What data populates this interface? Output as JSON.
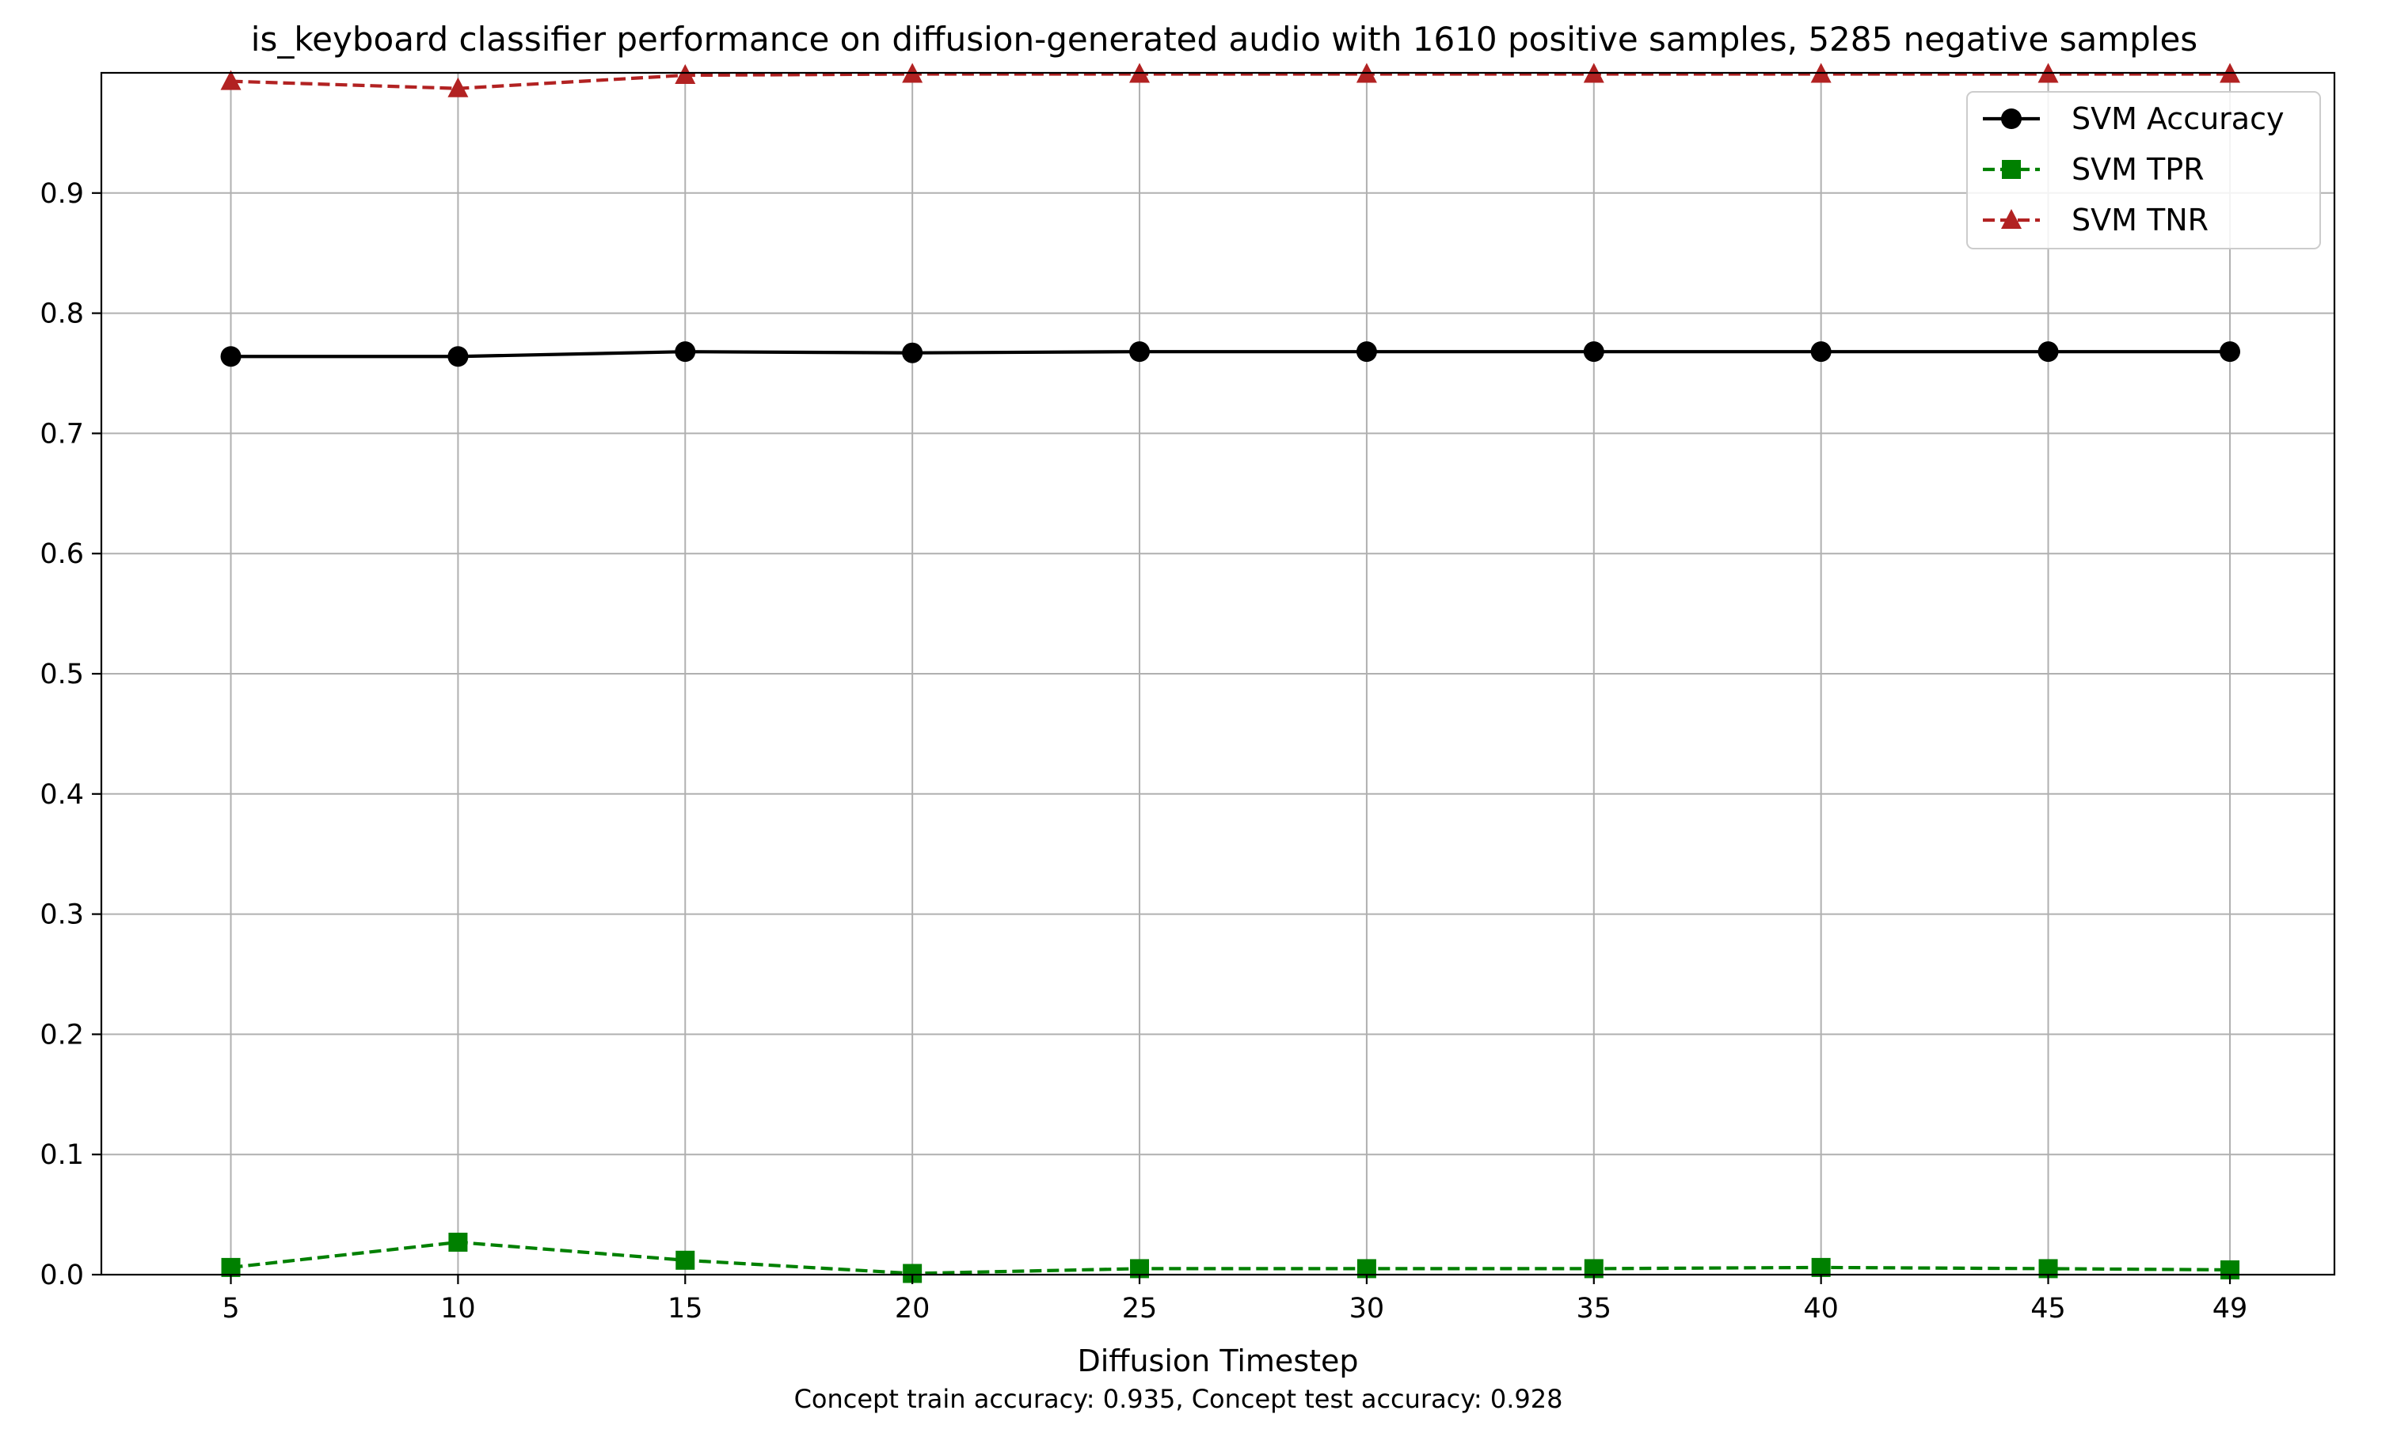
{
  "chart_data": {
    "type": "line",
    "title": "is_keyboard classifier performance on diffusion-generated audio with 1610 positive samples, 5285 negative samples",
    "xlabel": "Diffusion Timestep",
    "ylabel": "",
    "caption": "Concept train accuracy: 0.935, Concept test accuracy: 0.928",
    "x": [
      5,
      10,
      15,
      20,
      25,
      30,
      35,
      40,
      45,
      49
    ],
    "x_tick_labels": [
      "5",
      "10",
      "15",
      "20",
      "25",
      "30",
      "35",
      "40",
      "45",
      "49"
    ],
    "y_ticks": [
      0.0,
      0.1,
      0.2,
      0.3,
      0.4,
      0.5,
      0.6,
      0.7,
      0.8,
      0.9
    ],
    "y_tick_labels": [
      "0.0",
      "0.1",
      "0.2",
      "0.3",
      "0.4",
      "0.5",
      "0.6",
      "0.7",
      "0.8",
      "0.9"
    ],
    "xlim": [
      2.15,
      51.3
    ],
    "ylim": [
      0.0,
      1.0
    ],
    "grid": true,
    "legend_position": "top-right",
    "series": [
      {
        "name": "SVM Accuracy",
        "color": "#000000",
        "linestyle": "solid",
        "marker": "circle",
        "values": [
          0.764,
          0.764,
          0.768,
          0.767,
          0.768,
          0.768,
          0.768,
          0.768,
          0.768,
          0.768
        ]
      },
      {
        "name": "SVM TPR",
        "color": "#008000",
        "linestyle": "dashed",
        "marker": "square",
        "values": [
          0.006,
          0.027,
          0.012,
          0.001,
          0.005,
          0.005,
          0.005,
          0.006,
          0.005,
          0.004
        ]
      },
      {
        "name": "SVM TNR",
        "color": "#b22222",
        "linestyle": "dashed",
        "marker": "triangle",
        "values": [
          0.993,
          0.987,
          0.998,
          0.999,
          0.999,
          0.999,
          0.999,
          0.999,
          0.999,
          0.999
        ]
      }
    ]
  }
}
